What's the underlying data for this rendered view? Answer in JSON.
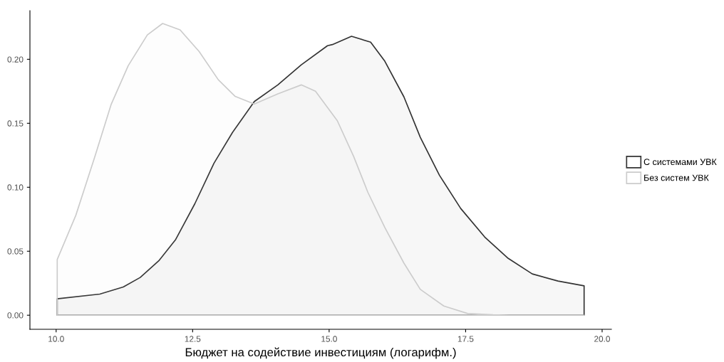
{
  "chart_data": {
    "type": "area",
    "xlabel": "Бюджет на содействие инвестициям (логарифм.)",
    "xlim": [
      9.52,
      20.17
    ],
    "xticks": [
      {
        "value": 10,
        "label": "10.0"
      },
      {
        "value": 12.5,
        "label": "12.5"
      },
      {
        "value": 15,
        "label": "15.0"
      },
      {
        "value": 17.5,
        "label": "17.5"
      },
      {
        "value": 20,
        "label": "20.0"
      }
    ],
    "ylim": [
      -0.011,
      0.238
    ],
    "yticks": [
      {
        "value": 0,
        "label": "0.00"
      },
      {
        "value": 0.05,
        "label": "0.05"
      },
      {
        "value": 0.1,
        "label": "0.10"
      },
      {
        "value": 0.15,
        "label": "0.15"
      },
      {
        "value": 0.2,
        "label": "0.20"
      }
    ],
    "grid": false,
    "legend": "right",
    "series": [
      {
        "name": "С системами УВК",
        "color": "#333333",
        "x": [
          10.02,
          10.8,
          11.23,
          11.54,
          11.88,
          12.19,
          12.54,
          12.89,
          13.23,
          13.63,
          14.06,
          14.49,
          14.97,
          15.06,
          15.41,
          15.76,
          16.02,
          16.37,
          16.67,
          17.02,
          17.41,
          17.85,
          18.28,
          18.72,
          19.19,
          19.67
        ],
        "values": [
          0.0128,
          0.0165,
          0.0221,
          0.0295,
          0.0425,
          0.0592,
          0.0871,
          0.1187,
          0.1428,
          0.167,
          0.18,
          0.1957,
          0.2106,
          0.2115,
          0.218,
          0.2134,
          0.1985,
          0.1706,
          0.139,
          0.1094,
          0.0834,
          0.0611,
          0.0444,
          0.0323,
          0.0267,
          0.023
        ]
      },
      {
        "name": "Без систем УВК",
        "color": "#cccccc",
        "x": [
          10.02,
          10.36,
          10.71,
          11.01,
          11.32,
          11.67,
          11.95,
          12.27,
          12.62,
          12.97,
          13.28,
          13.63,
          14.06,
          14.49,
          14.75,
          15.15,
          15.45,
          15.71,
          16.02,
          16.37,
          16.67,
          17.1,
          17.54,
          18.0,
          18.3,
          19.67
        ],
        "values": [
          0.0435,
          0.078,
          0.124,
          0.165,
          0.195,
          0.219,
          0.228,
          0.223,
          0.206,
          0.184,
          0.171,
          0.165,
          0.173,
          0.18,
          0.175,
          0.152,
          0.124,
          0.096,
          0.0685,
          0.0407,
          0.0202,
          0.0072,
          0.0013,
          0.0003,
          0.0,
          0.0
        ]
      }
    ]
  }
}
